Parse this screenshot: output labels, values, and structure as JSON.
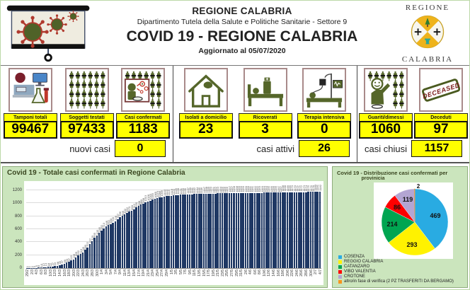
{
  "header": {
    "region": "REGIONE CALABRIA",
    "department": "Dipartimento Tutela della Salute e Politiche Sanitarie - Settore 9",
    "title": "COVID 19 - REGIONE CALABRIA",
    "updated": "Aggiornato al  05/07/2020",
    "logo_top": "REGIONE",
    "logo_bottom": "CALABRIA"
  },
  "stats": {
    "cards": [
      {
        "label": "Tamponi totali",
        "value": "99467",
        "icon": "lab-equipment-icon"
      },
      {
        "label": "Soggetti testati",
        "value": "97433",
        "icon": "syringe-grid-icon"
      },
      {
        "label": "Casi confermati",
        "value": "1183",
        "icon": "infected-person-icon"
      },
      {
        "label": "Isolati a domicilio",
        "value": "23",
        "icon": "house-icon"
      },
      {
        "label": "Ricoverati",
        "value": "3",
        "icon": "hospital-bed-icon"
      },
      {
        "label": "Terapia intensiva",
        "value": "0",
        "icon": "icu-bed-icon"
      },
      {
        "label": "Guariti/dimessi",
        "value": "1060",
        "icon": "recovered-person-icon"
      },
      {
        "label": "Deceduti",
        "value": "97",
        "icon": "deceased-stamp-icon",
        "stamp_text": "DECEASED"
      }
    ],
    "summary": [
      {
        "label": "nuovi casi",
        "value": "0"
      },
      {
        "label": "casi attivi",
        "value": "26"
      },
      {
        "label": "casi chiusi",
        "value": "1157"
      }
    ]
  },
  "chart_data": [
    {
      "type": "bar",
      "title": "Covid 19 - Totale casi confermati in Regione Calabria",
      "xlabel": "",
      "ylabel": "",
      "ylim": [
        0,
        1300
      ],
      "yticks": [
        0,
        200,
        400,
        600,
        800,
        1000,
        1200
      ],
      "grid": true,
      "bar_color": "#1f3864",
      "xtick_every": 2,
      "x": [
        "29/2",
        "1/3",
        "2/3",
        "3/3",
        "4/3",
        "5/3",
        "6/3",
        "7/3",
        "8/3",
        "9/3",
        "10/3",
        "11/3",
        "12/3",
        "13/3",
        "14/3",
        "15/3",
        "16/3",
        "17/3",
        "18/3",
        "19/3",
        "20/3",
        "21/3",
        "22/3",
        "23/3",
        "24/3",
        "25/3",
        "26/3",
        "27/3",
        "28/3",
        "29/3",
        "30/3",
        "31/3",
        "1/4",
        "2/4",
        "3/4",
        "4/4",
        "5/4",
        "6/4",
        "7/4",
        "8/4",
        "9/4",
        "10/4",
        "11/4",
        "12/4",
        "13/4",
        "14/4",
        "15/4",
        "16/4",
        "17/4",
        "18/4",
        "19/4",
        "20/4",
        "21/4",
        "22/4",
        "23/4",
        "24/4",
        "25/4",
        "26/4",
        "27/4",
        "28/4",
        "29/4",
        "30/4",
        "1/5",
        "2/5",
        "3/5",
        "4/5",
        "5/5",
        "6/5",
        "7/5",
        "8/5",
        "9/5",
        "10/5",
        "11/5",
        "12/5",
        "13/5",
        "14/5",
        "15/5",
        "16/5",
        "17/5",
        "18/5",
        "19/5",
        "20/5",
        "21/5",
        "22/5",
        "23/5",
        "24/5",
        "25/5",
        "26/5",
        "27/5",
        "28/5",
        "29/5",
        "30/5",
        "31/5",
        "1/6",
        "2/6",
        "3/6",
        "4/6",
        "5/6",
        "6/6",
        "7/6",
        "8/6",
        "9/6",
        "10/6",
        "11/6",
        "12/6",
        "13/6",
        "14/6",
        "15/6",
        "16/6",
        "17/6",
        "18/6",
        "19/6",
        "20/6",
        "21/6",
        "22/6",
        "23/6",
        "24/6",
        "25/6",
        "26/6",
        "27/6",
        "28/6",
        "29/6",
        "30/6",
        "1/7",
        "2/7",
        "3/7",
        "4/7"
      ],
      "values": [
        1,
        1,
        2,
        3,
        5,
        8,
        10,
        12,
        14,
        18,
        22,
        27,
        33,
        38,
        45,
        57,
        69,
        83,
        97,
        115,
        136,
        169,
        192,
        216,
        245,
        280,
        322,
        377,
        420,
        465,
        505,
        545,
        582,
        613,
        646,
        662,
        680,
        700,
        726,
        757,
        786,
        805,
        832,
        852,
        870,
        890,
        912,
        935,
        958,
        980,
        998,
        1013,
        1028,
        1043,
        1055,
        1069,
        1079,
        1088,
        1096,
        1103,
        1110,
        1115,
        1119,
        1122,
        1125,
        1128,
        1131,
        1133,
        1135,
        1137,
        1139,
        1141,
        1142,
        1144,
        1145,
        1146,
        1147,
        1148,
        1149,
        1150,
        1151,
        1152,
        1153,
        1154,
        1155,
        1156,
        1156,
        1157,
        1157,
        1158,
        1158,
        1159,
        1159,
        1159,
        1160,
        1160,
        1161,
        1161,
        1162,
        1162,
        1163,
        1163,
        1164,
        1164,
        1165,
        1165,
        1166,
        1166,
        1167,
        1167,
        1168,
        1168,
        1169,
        1169,
        1170,
        1170,
        1171,
        1171,
        1172,
        1173,
        1174,
        1175,
        1176,
        1178,
        1180,
        1181,
        1182
      ]
    },
    {
      "type": "pie",
      "title": "Covid 19 - Distribuzione casi confermati per",
      "title_line2": "provinicia",
      "legend_position": "bottom-left",
      "slices": [
        {
          "label": "COSENZA",
          "value": 469,
          "color": "#29abe2"
        },
        {
          "label": "REGGIO CALABRIA",
          "value": 293,
          "color": "#fff200"
        },
        {
          "label": "CATANZARO",
          "value": 214,
          "color": "#00a551"
        },
        {
          "label": "VIBO VALENTIA",
          "value": 86,
          "color": "#fe0000"
        },
        {
          "label": "CROTONE",
          "value": 119,
          "color": "#b3a5d3"
        },
        {
          "label": "altro/in fase di verifica (2 PZ TRASFERITI DA BERGAMO)",
          "value": 2,
          "color": "#f7941d"
        }
      ]
    }
  ],
  "colors": {
    "accent_yellow": "#ffff00",
    "bar_color": "#1f3864",
    "panel_green": "#cbe5bd",
    "icon_olive": "#55662a",
    "icon_box_border": "#a98a8a"
  }
}
